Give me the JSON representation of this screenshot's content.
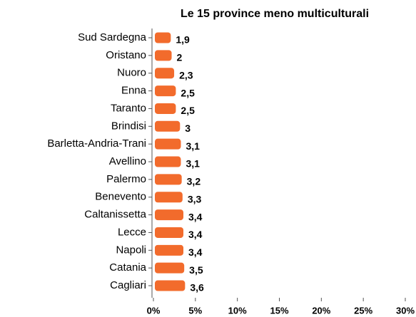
{
  "chart_data": {
    "type": "bar",
    "orientation": "horizontal",
    "title": "Le 15 province meno multiculturali",
    "categories": [
      "Sud Sardegna",
      "Oristano",
      "Nuoro",
      "Enna",
      "Taranto",
      "Brindisi",
      "Barletta-Andria-Trani",
      "Avellino",
      "Palermo",
      "Benevento",
      "Caltanissetta",
      "Lecce",
      "Napoli",
      "Catania",
      "Cagliari"
    ],
    "values": [
      1.9,
      2,
      2.3,
      2.5,
      2.5,
      3,
      3.1,
      3.1,
      3.2,
      3.3,
      3.4,
      3.4,
      3.4,
      3.5,
      3.6
    ],
    "value_labels": [
      "1,9",
      "2",
      "2,3",
      "2,5",
      "2,5",
      "3",
      "3,1",
      "3,1",
      "3,2",
      "3,3",
      "3,4",
      "3,4",
      "3,4",
      "3,5",
      "3,6"
    ],
    "color": "#f26b2c",
    "xlim": [
      0,
      30
    ],
    "xticks": [
      {
        "value": 0,
        "label": "0%"
      },
      {
        "value": 5,
        "label": "5%"
      },
      {
        "value": 10,
        "label": "10%"
      },
      {
        "value": 15,
        "label": "15%"
      },
      {
        "value": 20,
        "label": "20%"
      },
      {
        "value": 25,
        "label": "25%"
      },
      {
        "value": 30,
        "label": "30%"
      }
    ]
  }
}
